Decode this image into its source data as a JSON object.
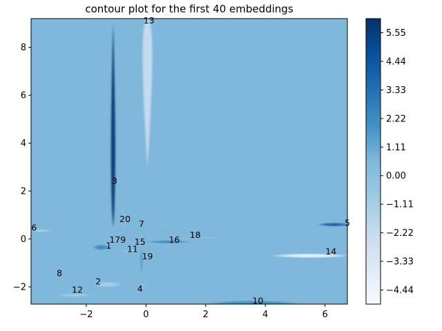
{
  "chart_data": {
    "type": "contour",
    "title": "contour plot for the first 40 embeddings",
    "xlabel": "",
    "ylabel": "",
    "xlim": [
      -3.85,
      6.75
    ],
    "ylim": [
      -2.72,
      9.2
    ],
    "x_ticks": [
      -2,
      0,
      2,
      4,
      6
    ],
    "x_tick_labels": [
      "−2",
      "0",
      "2",
      "4",
      "6"
    ],
    "y_ticks": [
      -2,
      0,
      2,
      4,
      6,
      8
    ],
    "y_tick_labels": [
      "−2",
      "0",
      "2",
      "4",
      "6",
      "8"
    ],
    "background_level": 0.0,
    "colormap": "Blues",
    "colorbar": {
      "vmin": -4.99,
      "vmax": 6.1,
      "ticks": [
        5.55,
        4.44,
        3.33,
        2.22,
        1.11,
        0.0,
        -1.11,
        -2.22,
        -3.33,
        -4.44
      ],
      "tick_labels": [
        "5.55",
        "4.44",
        "3.33",
        "2.22",
        "1.11",
        "0.00",
        "−1.11",
        "−2.22",
        "−3.33",
        "−4.44"
      ]
    },
    "points": [
      {
        "label": "13",
        "x": 0.1,
        "y": 9.1
      },
      {
        "label": "3",
        "x": -1.05,
        "y": 2.4
      },
      {
        "label": "20",
        "x": -0.7,
        "y": 0.8
      },
      {
        "label": "7",
        "x": -0.15,
        "y": 0.6
      },
      {
        "label": "6",
        "x": -3.75,
        "y": 0.45
      },
      {
        "label": "5",
        "x": 6.75,
        "y": 0.65
      },
      {
        "label": "18",
        "x": 1.65,
        "y": 0.15
      },
      {
        "label": "16",
        "x": 0.95,
        "y": -0.05
      },
      {
        "label": "179",
        "x": -0.95,
        "y": -0.05
      },
      {
        "label": "15",
        "x": -0.2,
        "y": -0.15
      },
      {
        "label": "1",
        "x": -1.25,
        "y": -0.3
      },
      {
        "label": "11",
        "x": -0.45,
        "y": -0.45
      },
      {
        "label": "14",
        "x": 6.2,
        "y": -0.55
      },
      {
        "label": "19",
        "x": 0.05,
        "y": -0.75
      },
      {
        "label": "8",
        "x": -2.9,
        "y": -1.45
      },
      {
        "label": "2",
        "x": -1.6,
        "y": -1.8
      },
      {
        "label": "12",
        "x": -2.3,
        "y": -2.15
      },
      {
        "label": "4",
        "x": -0.2,
        "y": -2.1
      },
      {
        "label": "10",
        "x": 3.75,
        "y": -2.6
      }
    ],
    "features": [
      {
        "type": "spike",
        "x": -1.1,
        "y0": 0.5,
        "y1": 9.0,
        "ypeak": 2.4,
        "halfwidth": 0.14,
        "level": 5.8
      },
      {
        "type": "spike",
        "x": 0.05,
        "y0": 3.0,
        "y1": 9.2,
        "ypeak": 9.2,
        "halfwidth": 0.32,
        "level": -2.6
      },
      {
        "type": "spike",
        "x": -0.75,
        "y0": 0.3,
        "y1": 1.4,
        "ypeak": 0.85,
        "halfwidth": 0.05,
        "level": -0.9
      },
      {
        "type": "spike",
        "x": -0.15,
        "y0": -1.45,
        "y1": -0.4,
        "ypeak": -0.8,
        "halfwidth": 0.06,
        "level": 1.3
      },
      {
        "type": "blob",
        "x": 6.3,
        "y": 0.6,
        "rx": 0.55,
        "ry": 0.09,
        "level": 3.8
      },
      {
        "type": "blob",
        "x": 5.5,
        "y": -0.7,
        "rx": 1.35,
        "ry": 0.1,
        "level": -4.6
      },
      {
        "type": "blob",
        "x": 0.75,
        "y": -0.12,
        "rx": 0.75,
        "ry": 0.07,
        "level": 1.9
      },
      {
        "type": "blob",
        "x": 1.8,
        "y": 0.05,
        "rx": 0.75,
        "ry": 0.05,
        "level": -0.5
      },
      {
        "type": "blob",
        "x": -1.5,
        "y": -0.35,
        "rx": 0.3,
        "ry": 0.12,
        "level": 2.0
      },
      {
        "type": "blob",
        "x": -3.55,
        "y": 0.35,
        "rx": 0.4,
        "ry": 0.07,
        "level": -1.6
      },
      {
        "type": "blob",
        "x": -0.5,
        "y": -0.5,
        "rx": 0.35,
        "ry": 0.06,
        "level": -0.9
      },
      {
        "type": "blob",
        "x": -1.3,
        "y": -1.9,
        "rx": 0.5,
        "ry": 0.12,
        "level": -1.7
      },
      {
        "type": "blob",
        "x": -2.4,
        "y": -2.35,
        "rx": 0.6,
        "ry": 0.09,
        "level": -1.3
      },
      {
        "type": "blob",
        "x": 3.6,
        "y": -2.7,
        "rx": 1.6,
        "ry": 0.14,
        "level": 1.9
      },
      {
        "type": "blob",
        "x": -0.1,
        "y": -1.95,
        "rx": 0.15,
        "ry": 0.1,
        "level": -0.5
      },
      {
        "type": "blob",
        "x": 0.6,
        "y": 0.6,
        "rx": 0.25,
        "ry": 0.12,
        "level": -0.3
      }
    ]
  }
}
